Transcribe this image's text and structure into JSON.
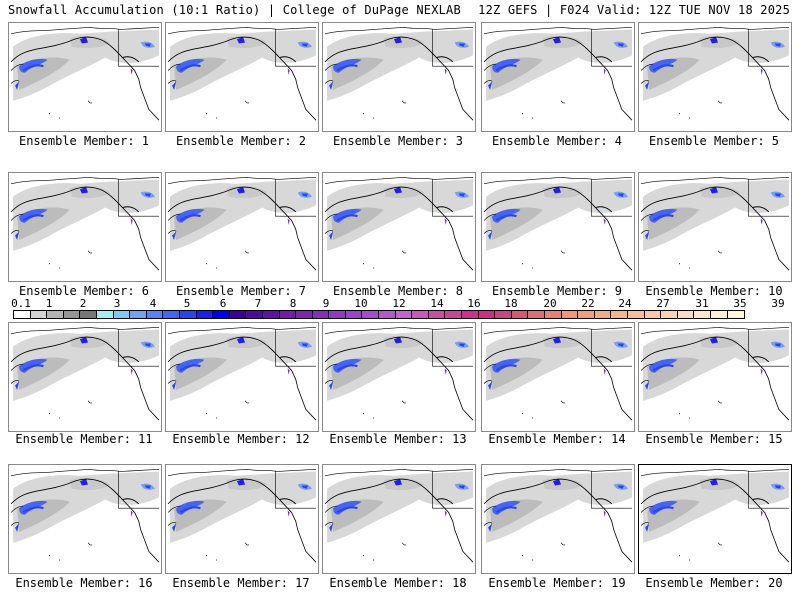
{
  "header": {
    "left": "Snowfall Accumulation (10:1 Ratio) | College of DuPage NEXLAB",
    "right": "12Z GEFS | F024 Valid: 12Z TUE NOV 18 2025"
  },
  "panel_label_prefix": "Ensemble Member: ",
  "panels": [
    {
      "label": "Ensemble Member: 1"
    },
    {
      "label": "Ensemble Member: 2"
    },
    {
      "label": "Ensemble Member: 3"
    },
    {
      "label": "Ensemble Member: 4"
    },
    {
      "label": "Ensemble Member: 5"
    },
    {
      "label": "Ensemble Member: 6"
    },
    {
      "label": "Ensemble Member: 7"
    },
    {
      "label": "Ensemble Member: 8"
    },
    {
      "label": "Ensemble Member: 9"
    },
    {
      "label": "Ensemble Member: 10"
    },
    {
      "label": "Ensemble Member: 11"
    },
    {
      "label": "Ensemble Member: 12"
    },
    {
      "label": "Ensemble Member: 13"
    },
    {
      "label": "Ensemble Member: 14"
    },
    {
      "label": "Ensemble Member: 15"
    },
    {
      "label": "Ensemble Member: 16"
    },
    {
      "label": "Ensemble Member: 17"
    },
    {
      "label": "Ensemble Member: 18"
    },
    {
      "label": "Ensemble Member: 19"
    },
    {
      "label": "Ensemble Member: 20",
      "selected": true
    }
  ],
  "colorbar": {
    "tick_labels": [
      "0.1",
      "1",
      "2",
      "3",
      "4",
      "5",
      "6",
      "7",
      "8",
      "9",
      "10",
      "12",
      "14",
      "16",
      "18",
      "20",
      "22",
      "24",
      "27",
      "31",
      "35",
      "39"
    ],
    "colors": [
      "#ffffff",
      "#d2d2d2",
      "#b4b4b4",
      "#969696",
      "#787878",
      "#a0f0f0",
      "#80c8f0",
      "#78a0f0",
      "#5a82f0",
      "#4664f0",
      "#2846f0",
      "#1e1ef0",
      "#0000f0",
      "#3c0096",
      "#4b0aa0",
      "#5a14a5",
      "#6e1eaa",
      "#7828aa",
      "#8232b4",
      "#8c3cbe",
      "#9646c8",
      "#a050c8",
      "#b45ac8",
      "#c864c8",
      "#c85ab4",
      "#c850a0",
      "#c84696",
      "#c8328c",
      "#c83282",
      "#c8467d",
      "#d25a78",
      "#dc6e78",
      "#e68278",
      "#f0967d",
      "#f0a082",
      "#f0aa8c",
      "#f5b496",
      "#f5bea0",
      "#fac8aa",
      "#fad2b4",
      "#fadcbe",
      "#fae6c8",
      "#fff0d2",
      "#fff5dc"
    ]
  }
}
